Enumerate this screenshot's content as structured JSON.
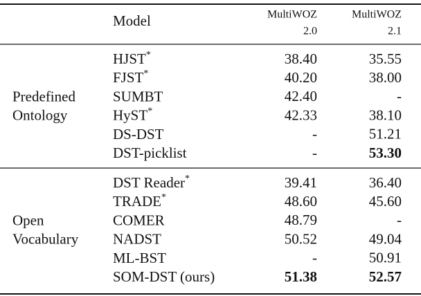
{
  "table": {
    "header": {
      "model": "Model",
      "columns": [
        {
          "name": "MultiWOZ",
          "version": "2.0"
        },
        {
          "name": "MultiWOZ",
          "version": "2.1"
        }
      ]
    },
    "groups": [
      {
        "label": [
          "Predefined",
          "Ontology"
        ],
        "rows": [
          {
            "model": "HJST",
            "mark": "*",
            "values": [
              "38.40",
              "35.55"
            ]
          },
          {
            "model": "FJST",
            "mark": "*",
            "values": [
              "40.20",
              "38.00"
            ]
          },
          {
            "model": "SUMBT",
            "values": [
              "42.40",
              "-"
            ]
          },
          {
            "model": "HyST",
            "mark": "*",
            "values": [
              "42.33",
              "38.10"
            ]
          },
          {
            "model": "DS-DST",
            "values": [
              "-",
              "51.21"
            ]
          },
          {
            "model": "DST-picklist",
            "values": [
              "-",
              "53.30"
            ],
            "bold": [
              false,
              true
            ]
          }
        ]
      },
      {
        "label": [
          "Open",
          "Vocabulary"
        ],
        "rows": [
          {
            "model": "DST Reader",
            "mark": "*",
            "values": [
              "39.41",
              "36.40"
            ]
          },
          {
            "model": "TRADE",
            "mark": "*",
            "values": [
              "48.60",
              "45.60"
            ]
          },
          {
            "model": "COMER",
            "values": [
              "48.79",
              "-"
            ]
          },
          {
            "model": "NADST",
            "values": [
              "50.52",
              "49.04"
            ]
          },
          {
            "model": "ML-BST",
            "values": [
              "-",
              "50.91"
            ]
          },
          {
            "model": "SOM-DST (ours)",
            "values": [
              "51.38",
              "52.57"
            ],
            "bold": [
              true,
              true
            ]
          }
        ]
      }
    ]
  }
}
